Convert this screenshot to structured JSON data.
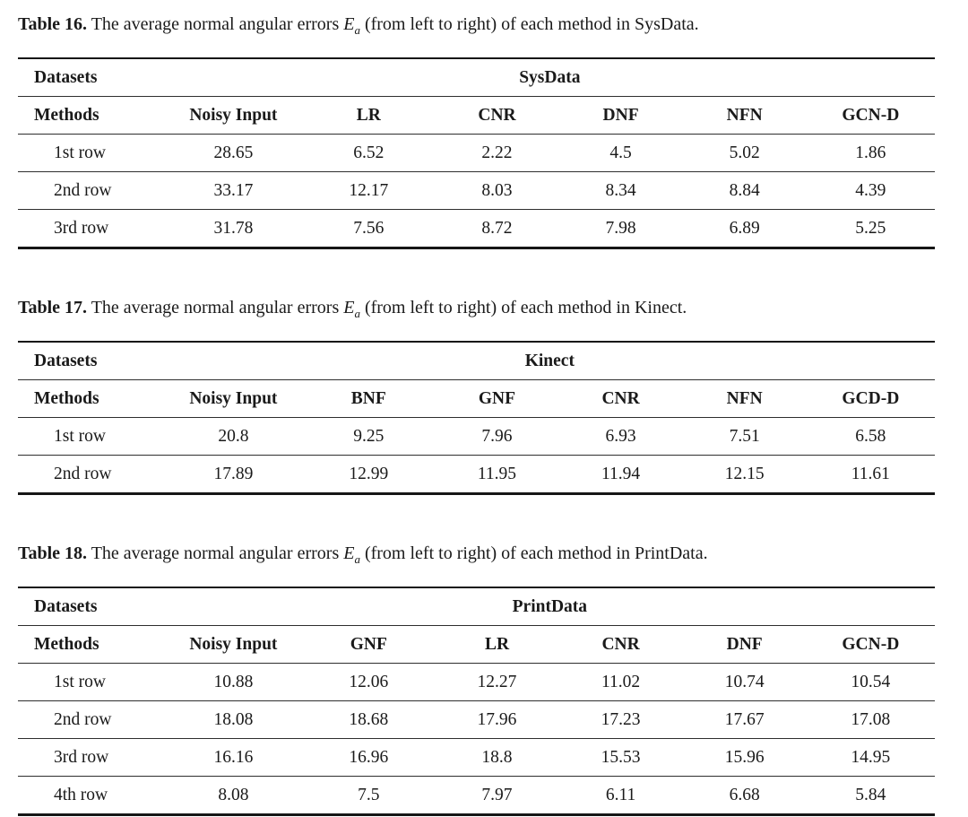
{
  "page": {
    "background_color": "#ffffff",
    "text_color": "#1a1a1a",
    "rule_color": "#161616"
  },
  "tables": [
    {
      "caption": {
        "label": "Table 16.",
        "before_math": " The average normal angular errors ",
        "math_var": "E",
        "math_sub": "a",
        "after_math": " (from left to right) of each method in SysData."
      },
      "group_header": {
        "left_label": "Datasets",
        "span_label": "SysData"
      },
      "columns": [
        "Methods",
        "Noisy Input",
        "LR",
        "CNR",
        "DNF",
        "NFN",
        "GCN-D"
      ],
      "rows": [
        {
          "cells": [
            "1st row",
            "28.65",
            "6.52",
            "2.22",
            "4.5",
            "5.02",
            "1.86"
          ]
        },
        {
          "cells": [
            "2nd row",
            "33.17",
            "12.17",
            "8.03",
            "8.34",
            "8.84",
            "4.39"
          ]
        },
        {
          "cells": [
            "3rd row",
            "31.78",
            "7.56",
            "8.72",
            "7.98",
            "6.89",
            "5.25"
          ]
        }
      ]
    },
    {
      "caption": {
        "label": "Table 17.",
        "before_math": " The average normal angular errors ",
        "math_var": "E",
        "math_sub": "a",
        "after_math": " (from left to right) of each method in Kinect."
      },
      "group_header": {
        "left_label": "Datasets",
        "span_label": "Kinect"
      },
      "columns": [
        "Methods",
        "Noisy Input",
        "BNF",
        "GNF",
        "CNR",
        "NFN",
        "GCD-D"
      ],
      "rows": [
        {
          "cells": [
            "1st row",
            "20.8",
            "9.25",
            "7.96",
            "6.93",
            "7.51",
            "6.58"
          ]
        },
        {
          "cells": [
            "2nd row",
            "17.89",
            "12.99",
            "11.95",
            "11.94",
            "12.15",
            "11.61"
          ]
        }
      ]
    },
    {
      "caption": {
        "label": "Table 18.",
        "before_math": " The average normal angular errors ",
        "math_var": "E",
        "math_sub": "a",
        "after_math": " (from left to right) of each method in PrintData."
      },
      "group_header": {
        "left_label": "Datasets",
        "span_label": "PrintData"
      },
      "columns": [
        "Methods",
        "Noisy Input",
        "GNF",
        "LR",
        "CNR",
        "DNF",
        "GCN-D"
      ],
      "rows": [
        {
          "cells": [
            "1st row",
            "10.88",
            "12.06",
            "12.27",
            "11.02",
            "10.74",
            "10.54"
          ]
        },
        {
          "cells": [
            "2nd row",
            "18.08",
            "18.68",
            "17.96",
            "17.23",
            "17.67",
            "17.08"
          ]
        },
        {
          "cells": [
            "3rd row",
            "16.16",
            "16.96",
            "18.8",
            "15.53",
            "15.96",
            "14.95"
          ]
        },
        {
          "cells": [
            "4th row",
            "8.08",
            "7.5",
            "7.97",
            "6.11",
            "6.68",
            "5.84"
          ]
        }
      ]
    }
  ]
}
